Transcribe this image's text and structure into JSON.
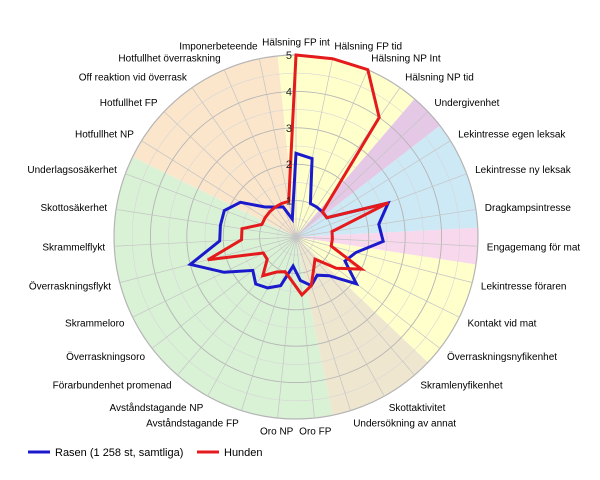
{
  "chart_data": {
    "type": "radar",
    "title": "",
    "categories": [
      "Hälsning FP int",
      "Hälsning FP tid",
      "Hälsning NP Int",
      "Hälsning NP tid",
      "Undergivenhet",
      "Lekintresse egen leksak",
      "Lekintresse ny leksak",
      "Dragkampsintresse",
      "Engagemang för mat",
      "Lekintresse föraren",
      "Kontakt vid mat",
      "Överraskningsnyfikenhet",
      "Skramlenyfikenhet",
      "Skottaktivitet",
      "Undersökning av annat",
      "Oro FP",
      "Oro NP",
      "Avståndstagande FP",
      "Avståndstagande NP",
      "Förarbundenhet promenad",
      "Överraskningsoro",
      "Skrammeloro",
      "Överraskningsflykt",
      "Skrammelflykt",
      "Skottosäkerhet",
      "Underlagsosäkerhet",
      "Hotfullhet NP",
      "Hotfullhet FP",
      "Off reaktion vid överrask",
      "Hotfullhet överraskning",
      "Imponerbeteende"
    ],
    "rmin": 0,
    "rmax": 5,
    "ticks": [
      "1",
      "2",
      "3",
      "4",
      "5"
    ],
    "series": [
      {
        "name": "Rasen (1 258 st, samtliga)",
        "color": "#1a1acc",
        "values": [
          2.3,
          2.2,
          1.0,
          1.0,
          1.0,
          1.0,
          2.7,
          2.3,
          2.4,
          1.7,
          1.5,
          2.1,
          1.4,
          1.2,
          1.4,
          1.2,
          0.8,
          1.4,
          1.6,
          1.7,
          1.5,
          2.2,
          3.0,
          2.1,
          2.1,
          2.1,
          1.8,
          1.2,
          1.0,
          0.9,
          0.5
        ]
      },
      {
        "name": "Hunden",
        "color": "#e41a1c",
        "values": [
          5.0,
          5.0,
          5.0,
          4.0,
          1.0,
          1.0,
          2.7,
          1.0,
          1.0,
          1.0,
          2.0,
          1.4,
          0.8,
          1.0,
          1.4,
          1.6,
          1.2,
          1.0,
          1.1,
          1.4,
          1.0,
          1.0,
          2.5,
          1.5,
          1.5,
          1.0,
          1.0,
          1.0,
          1.0,
          1.0,
          1.0
        ]
      }
    ],
    "sectors": [
      {
        "from": 0,
        "to": 3,
        "color": "#ffffcc"
      },
      {
        "from": 4,
        "to": 4,
        "color": "#e5c8e6"
      },
      {
        "from": 5,
        "to": 7,
        "color": "#cde9f5"
      },
      {
        "from": 8,
        "to": 8,
        "color": "#f8d8ec"
      },
      {
        "from": 9,
        "to": 11,
        "color": "#ffffcc"
      },
      {
        "from": 12,
        "to": 14,
        "color": "#efe6cf"
      },
      {
        "from": 15,
        "to": 25,
        "color": "#d9f2d6"
      },
      {
        "from": 26,
        "to": 30,
        "color": "#fbe6cc"
      }
    ],
    "legend_position": "bottom-left"
  }
}
